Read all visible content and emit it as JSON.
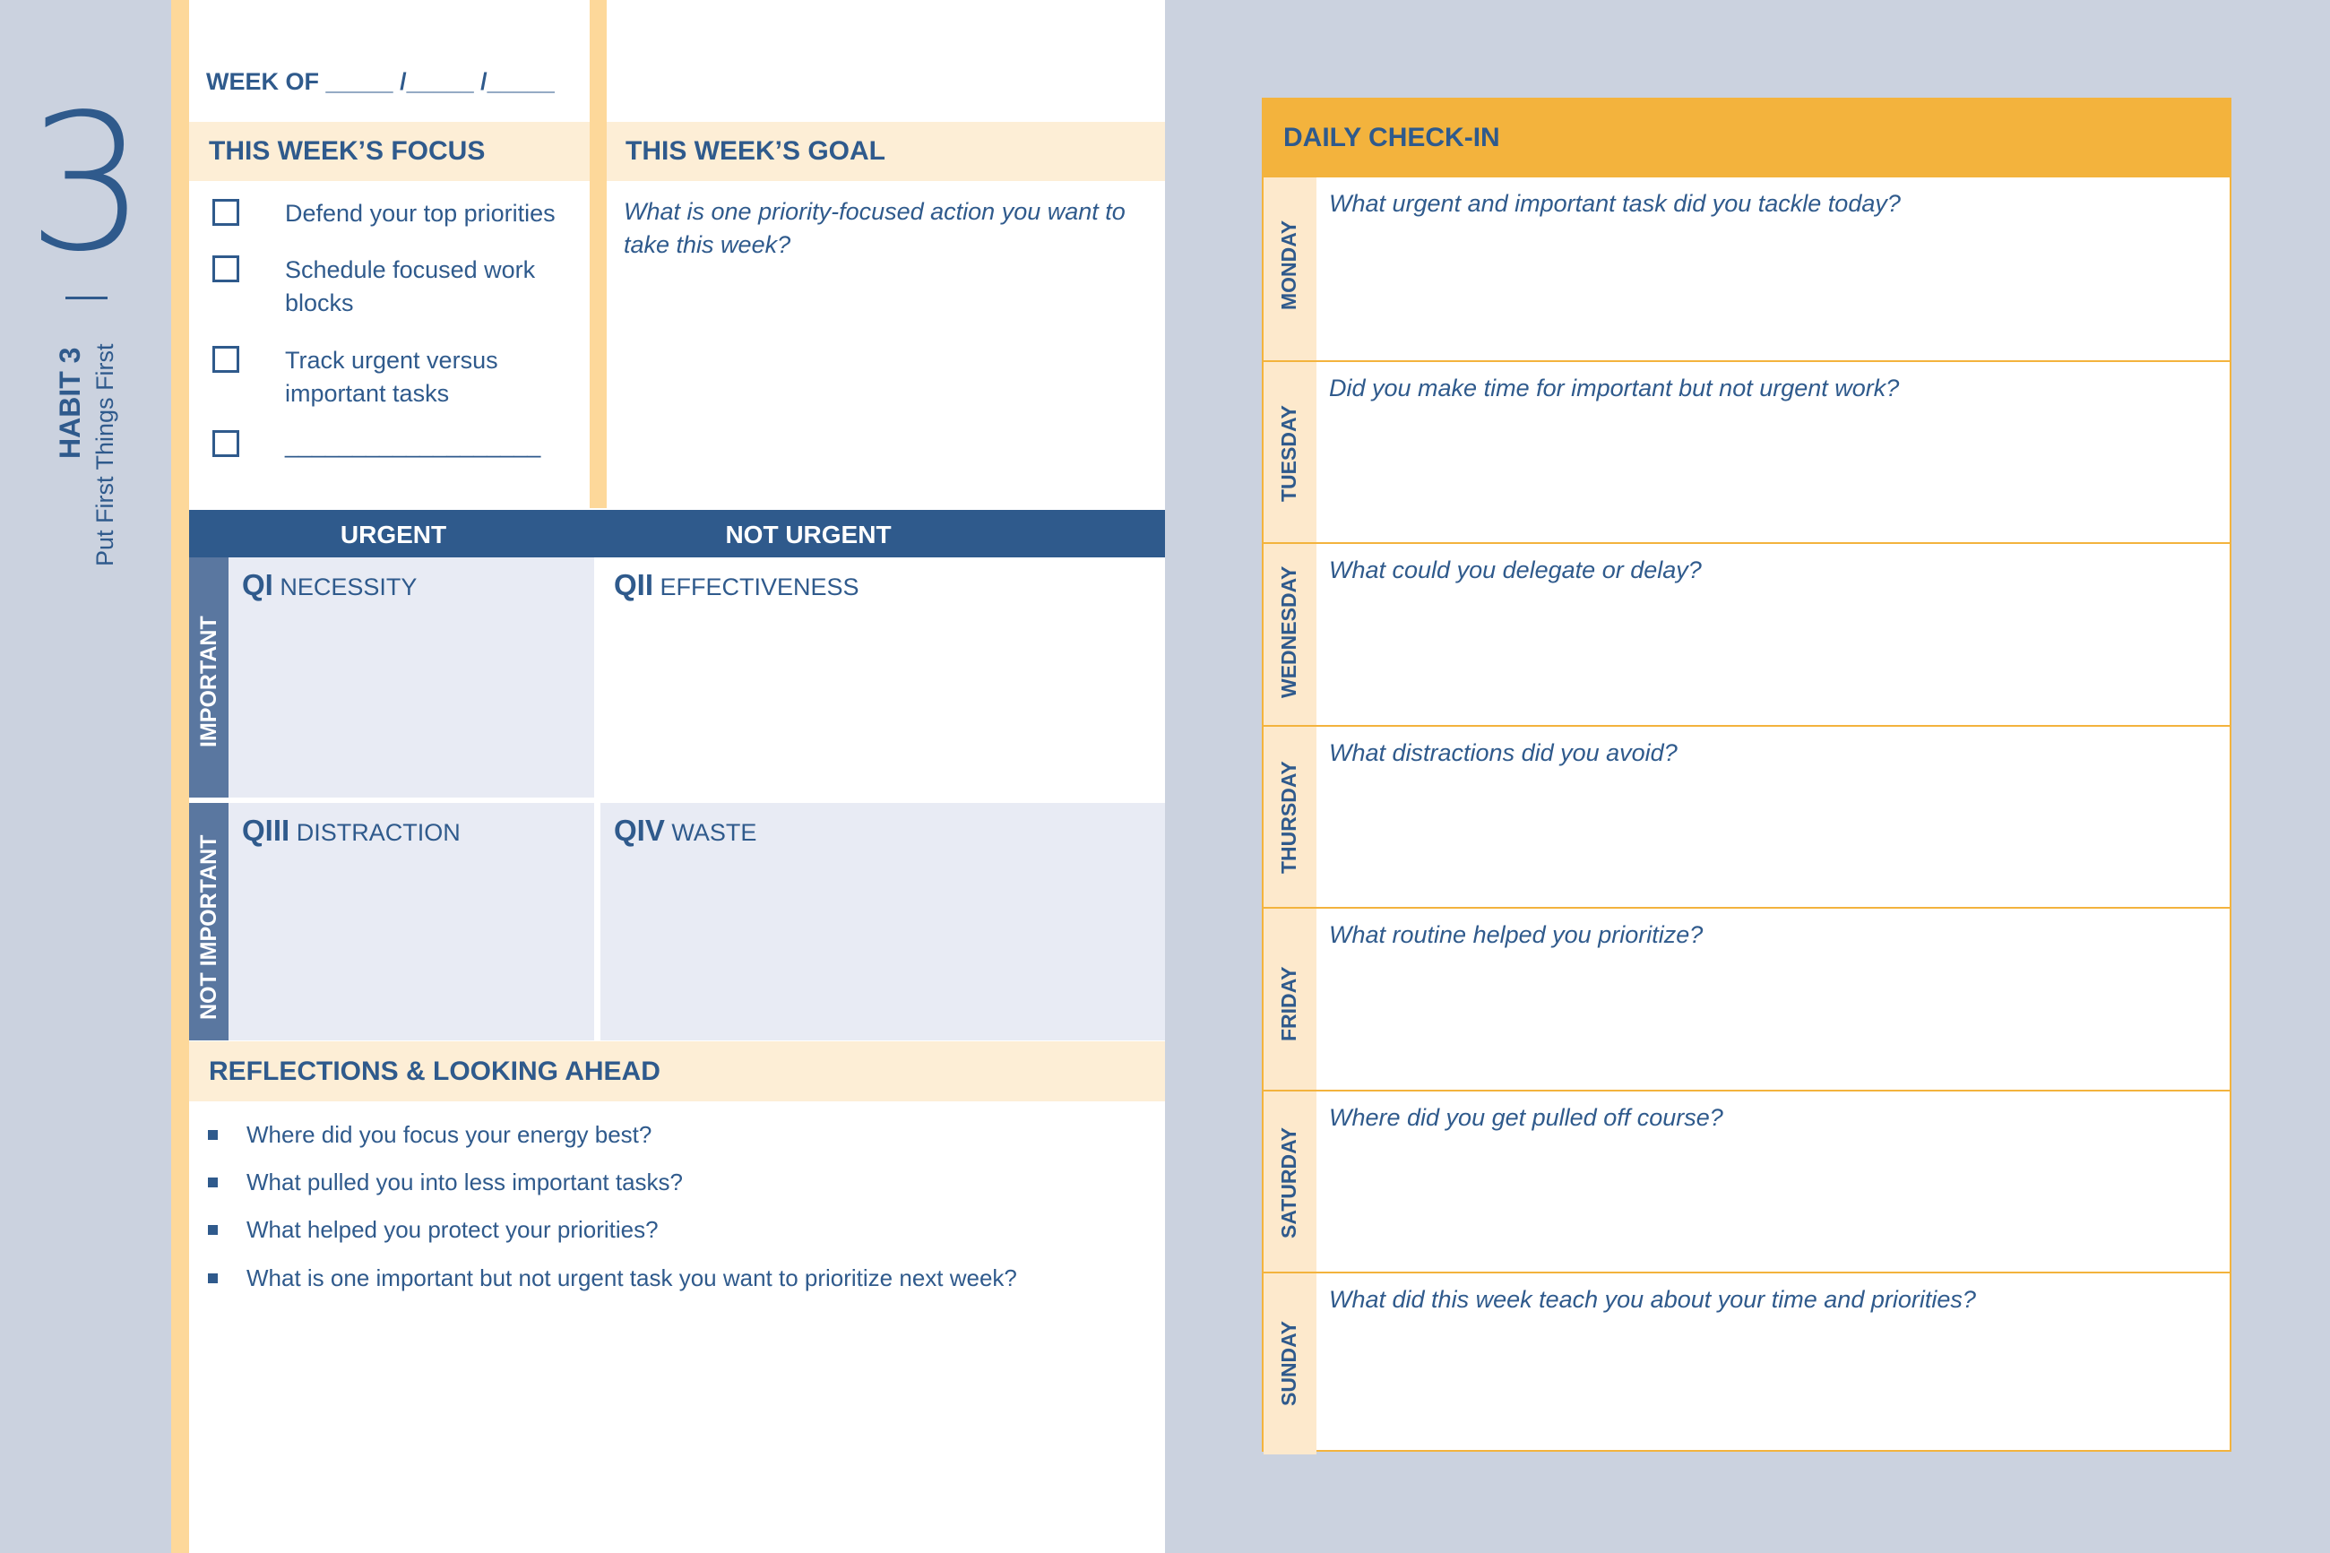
{
  "sidebar": {
    "number": "3",
    "habit": "HABIT 3",
    "subtitle": "Put First Things First"
  },
  "week_of": "WEEK OF _____ /_____ /_____",
  "focus": {
    "title": "THIS WEEK’S FOCUS",
    "items": [
      "Defend your top priorities",
      "Schedule focused work blocks",
      "Track urgent versus important tasks",
      "___________________"
    ]
  },
  "goal": {
    "title": "THIS WEEK’S GOAL",
    "prompt": "What is one priority-focused action you want to take this week?"
  },
  "matrix": {
    "urgent": "URGENT",
    "not_urgent": "NOT URGENT",
    "important": "IMPORTANT",
    "not_important": "NOT IMPORTANT",
    "q1": {
      "code": "QI",
      "label": "NECESSITY"
    },
    "q2": {
      "code": "QII",
      "label": "EFFECTIVENESS"
    },
    "q3": {
      "code": "QIII",
      "label": "DISTRACTION"
    },
    "q4": {
      "code": "QIV",
      "label": "WASTE"
    }
  },
  "reflections": {
    "title": "REFLECTIONS & LOOKING AHEAD",
    "items": [
      "Where did you focus your energy best?",
      "What pulled you into less important tasks?",
      "What helped you protect your priorities?",
      "What is one important but not urgent task you want to prioritize next week?"
    ]
  },
  "daily": {
    "title": "DAILY CHECK-IN",
    "days": [
      {
        "day": "MONDAY",
        "q": "What urgent and important task did you tackle today?"
      },
      {
        "day": "TUESDAY",
        "q": "Did you make time for important but not urgent work?"
      },
      {
        "day": "WEDNESDAY",
        "q": "What could you delegate or delay?"
      },
      {
        "day": "THURSDAY",
        "q": "What distractions did you avoid?"
      },
      {
        "day": "FRIDAY",
        "q": "What routine helped you prioritize?"
      },
      {
        "day": "SATURDAY",
        "q": "Where did you get pulled off course?"
      },
      {
        "day": "SUNDAY",
        "q": "What did this week teach you about your time and priorities?"
      }
    ]
  },
  "colors": {
    "navy": "#2f5a8c",
    "accent": "#f3b33d",
    "stripe": "#fdd89a",
    "band": "#fdeed6"
  }
}
